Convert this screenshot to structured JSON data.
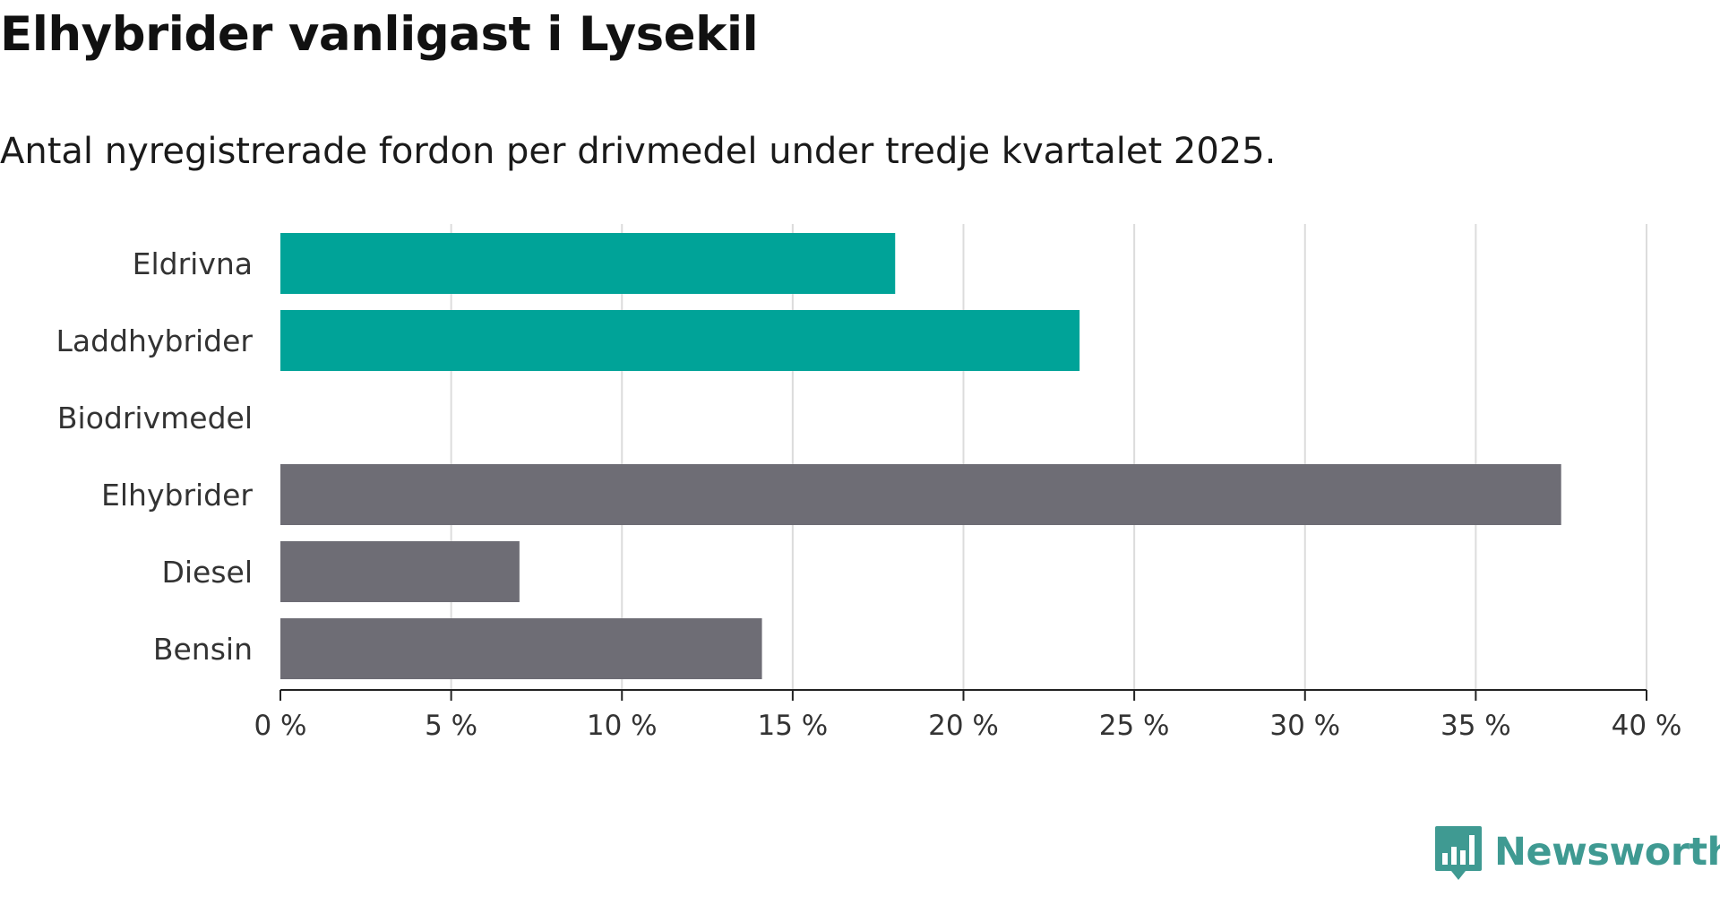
{
  "chart_data": {
    "type": "bar",
    "orientation": "horizontal",
    "title": "Elhybrider vanligast i Lysekil",
    "subtitle": "Antal nyregistrerade fordon per drivmedel under tredje kvartalet 2025.",
    "categories": [
      "Eldrivna",
      "Laddhybrider",
      "Biodrivmedel",
      "Elhybrider",
      "Diesel",
      "Bensin"
    ],
    "values": [
      18.0,
      23.4,
      0,
      37.5,
      7.0,
      14.1
    ],
    "bar_colors": [
      "#00a398",
      "#00a398",
      "#00a398",
      "#6e6d75",
      "#6e6d75",
      "#6e6d75"
    ],
    "xlim": [
      0,
      40
    ],
    "ticks": [
      0,
      5,
      10,
      15,
      20,
      25,
      30,
      35,
      40
    ],
    "tick_labels": [
      "0 %",
      "5 %",
      "10 %",
      "15 %",
      "20 %",
      "25 %",
      "30 %",
      "35 %",
      "40 %"
    ],
    "xlabel": "",
    "ylabel": "",
    "grid": true
  },
  "branding": {
    "name": "Newsworthy",
    "color": "#3f9a92",
    "icon": "newsworthy-chart-icon"
  }
}
